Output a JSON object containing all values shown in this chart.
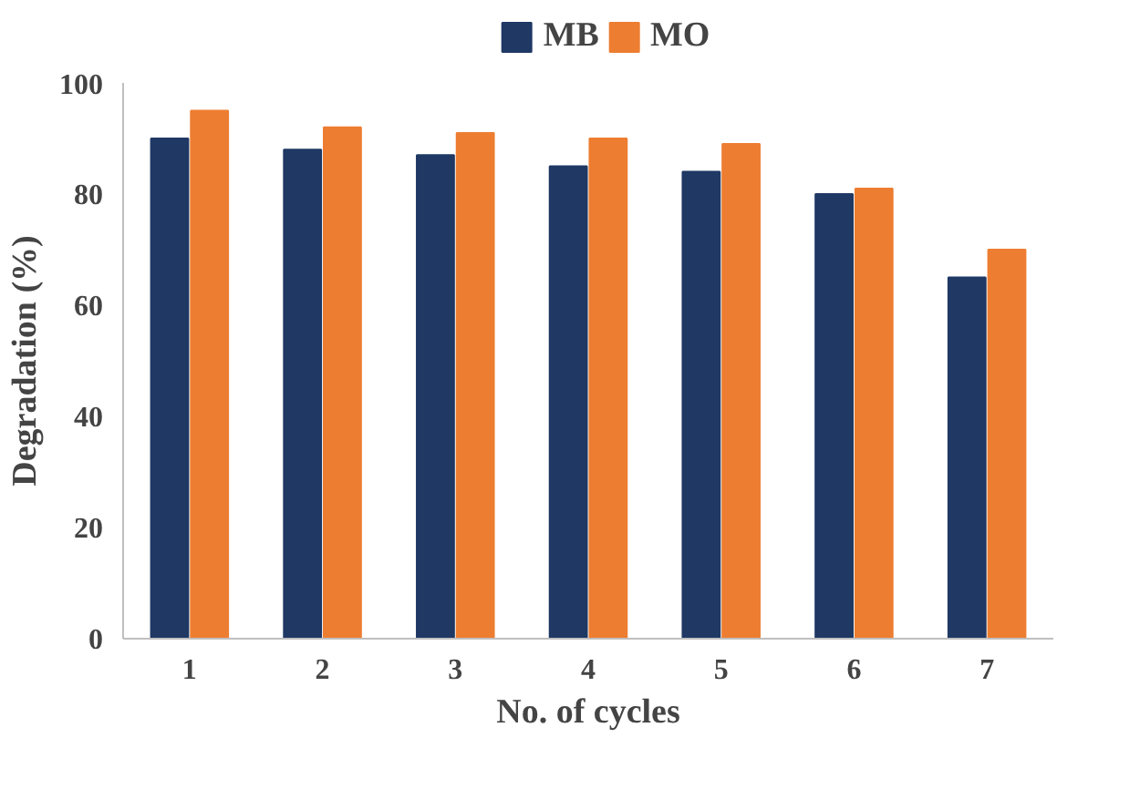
{
  "chart_data": {
    "type": "bar",
    "xlabel": "No. of cycles",
    "ylabel": "Degradation (%)",
    "categories": [
      "1",
      "2",
      "3",
      "4",
      "5",
      "6",
      "7"
    ],
    "series": [
      {
        "name": "MB",
        "color": "#1f3864",
        "values": [
          90,
          88,
          87,
          85,
          84,
          80,
          65
        ]
      },
      {
        "name": "MO",
        "color": "#ed7d31",
        "values": [
          95,
          92,
          91,
          90,
          89,
          81,
          70
        ]
      }
    ],
    "ylim": [
      0,
      100
    ],
    "yticks": [
      0,
      20,
      40,
      60,
      80,
      100
    ],
    "grid": false,
    "legend": "top"
  }
}
